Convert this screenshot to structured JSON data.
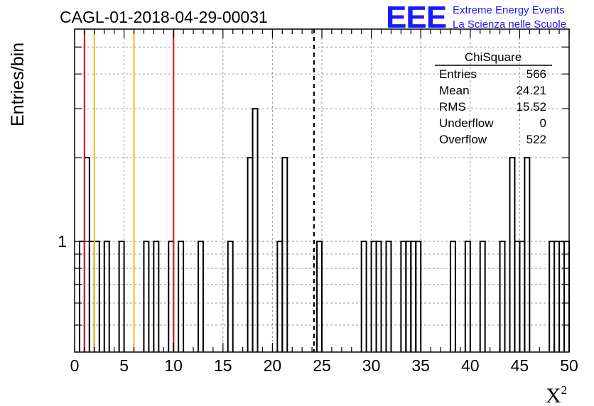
{
  "chart_data": {
    "type": "histogram",
    "title": "CAGL-01-2018-04-29-00031",
    "ylabel": "Entries/bin",
    "xlabel": "X",
    "xlabel_sup": "2",
    "x_range": [
      0,
      50
    ],
    "x_ticks": [
      "0",
      "5",
      "10",
      "15",
      "20",
      "25",
      "30",
      "35",
      "40",
      "45",
      "50"
    ],
    "y_scale": "log",
    "y_tick_labels": [
      "1"
    ],
    "grid": true,
    "bin_width": 0.5,
    "bins": [
      {
        "x": 0.5,
        "y": 1
      },
      {
        "x": 1.0,
        "y": 2
      },
      {
        "x": 1.5,
        "y": 1
      },
      {
        "x": 2.0,
        "y": 1
      },
      {
        "x": 3.0,
        "y": 1
      },
      {
        "x": 4.5,
        "y": 1
      },
      {
        "x": 7.0,
        "y": 1
      },
      {
        "x": 8.0,
        "y": 1
      },
      {
        "x": 9.5,
        "y": 1
      },
      {
        "x": 10.5,
        "y": 1
      },
      {
        "x": 12.5,
        "y": 1
      },
      {
        "x": 15.5,
        "y": 1
      },
      {
        "x": 17.5,
        "y": 2
      },
      {
        "x": 18.0,
        "y": 3
      },
      {
        "x": 20.5,
        "y": 1
      },
      {
        "x": 21.0,
        "y": 2
      },
      {
        "x": 24.5,
        "y": 1
      },
      {
        "x": 29.0,
        "y": 1
      },
      {
        "x": 30.0,
        "y": 1
      },
      {
        "x": 30.5,
        "y": 1
      },
      {
        "x": 31.5,
        "y": 1
      },
      {
        "x": 33.0,
        "y": 1
      },
      {
        "x": 33.5,
        "y": 1
      },
      {
        "x": 34.0,
        "y": 1
      },
      {
        "x": 34.5,
        "y": 1
      },
      {
        "x": 38.0,
        "y": 1
      },
      {
        "x": 39.5,
        "y": 1
      },
      {
        "x": 41.0,
        "y": 1
      },
      {
        "x": 43.0,
        "y": 1
      },
      {
        "x": 44.0,
        "y": 2
      },
      {
        "x": 44.5,
        "y": 1
      },
      {
        "x": 45.0,
        "y": 1
      },
      {
        "x": 45.5,
        "y": 2
      },
      {
        "x": 48.0,
        "y": 1
      },
      {
        "x": 48.5,
        "y": 1
      },
      {
        "x": 49.0,
        "y": 1
      },
      {
        "x": 49.5,
        "y": 1
      }
    ],
    "vertical_lines": [
      {
        "x": 1.0,
        "color": "#d42020",
        "style": "solid"
      },
      {
        "x": 2.0,
        "color": "#f2c12e",
        "style": "solid"
      },
      {
        "x": 6.0,
        "color": "#f2c12e",
        "style": "solid"
      },
      {
        "x": 10.0,
        "color": "#d42020",
        "style": "solid"
      },
      {
        "x": 24.2,
        "color": "#000000",
        "style": "dashed"
      }
    ],
    "stats_box": {
      "title": "ChiSquare",
      "rows": [
        {
          "label": "Entries",
          "value": "566"
        },
        {
          "label": "Mean",
          "value": "24.21"
        },
        {
          "label": "RMS",
          "value": "15.52"
        },
        {
          "label": "Underflow",
          "value": "0"
        },
        {
          "label": "Overflow",
          "value": "522"
        }
      ]
    }
  },
  "logo": {
    "text": "EEE",
    "line1": "Extreme Energy Events",
    "line2": "La Scienza nelle Scuole",
    "color": "#1a1aff"
  }
}
